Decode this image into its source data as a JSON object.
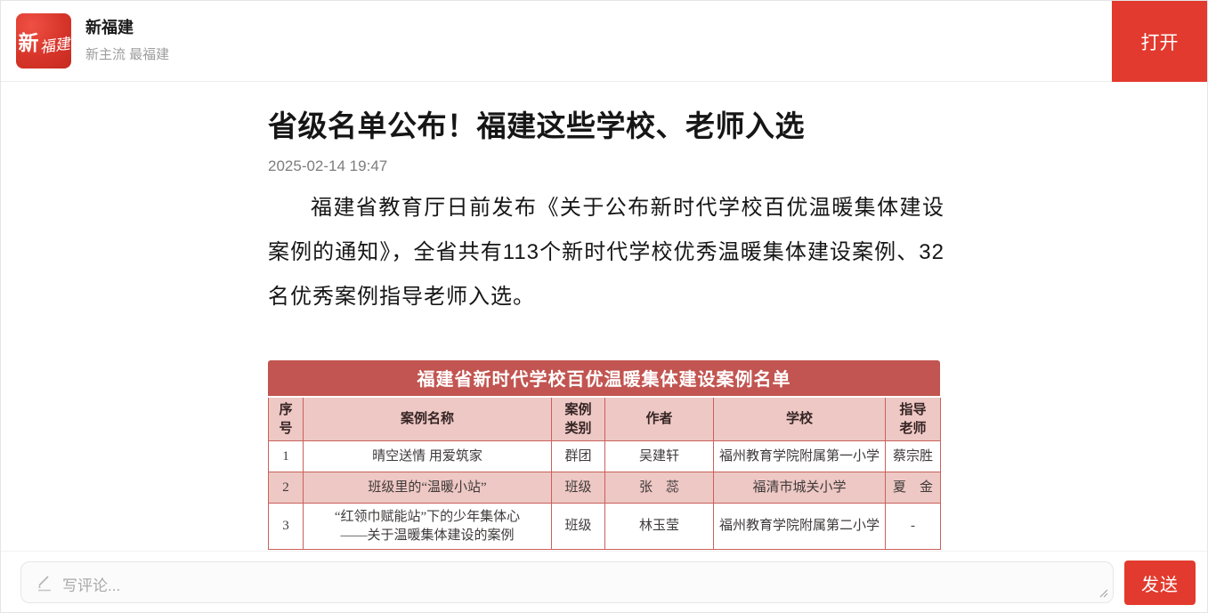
{
  "header": {
    "logo_text_part1": "新",
    "logo_text_part2": "福建",
    "app_name": "新福建",
    "tagline": "新主流 最福建",
    "open_button_label": "打开"
  },
  "article": {
    "title": "省级名单公布！福建这些学校、老师入选",
    "date": "2025-02-14 19:47",
    "paragraph": "福建省教育厅日前发布《关于公布新时代学校百优温暖集体建设案例的通知》，全省共有113个新时代学校优秀温暖集体建设案例、32名优秀案例指导老师入选。"
  },
  "table": {
    "title": "福建省新时代学校百优温暖集体建设案例名单",
    "columns": [
      "序\n号",
      "案例名称",
      "案例\n类别",
      "作者",
      "学校",
      "指导\n老师"
    ],
    "rows": [
      {
        "no": "1",
        "case": "晴空送情  用爱筑家",
        "type": "群团",
        "author": "吴建轩",
        "school": "福州教育学院附属第一小学",
        "mentor": "蔡宗胜",
        "highlight": false
      },
      {
        "no": "2",
        "case": "班级里的“温暖小站”",
        "type": "班级",
        "author": "张　蕊",
        "school": "福清市城关小学",
        "mentor": "夏　金",
        "highlight": true
      },
      {
        "no": "3",
        "case": "“红领巾赋能站”下的少年集体心\n——关于温暖集体建设的案例",
        "type": "班级",
        "author": "林玉莹",
        "school": "福州教育学院附属第二小学",
        "mentor": "-",
        "highlight": false
      }
    ]
  },
  "comment_bar": {
    "placeholder": "写评论...",
    "send_button_label": "发送"
  },
  "colors": {
    "accent_red": "#e23a2e",
    "table_title_red": "#c25551",
    "table_pink": "#eec8c4",
    "table_border": "#c9615c",
    "tagline_gray": "#9d9d9d"
  }
}
